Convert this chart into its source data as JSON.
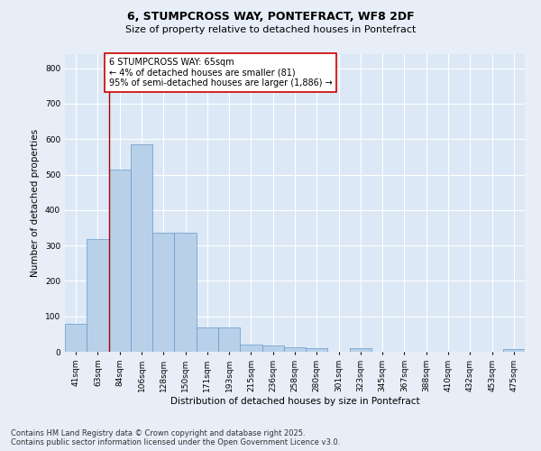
{
  "title_line1": "6, STUMPCROSS WAY, PONTEFRACT, WF8 2DF",
  "title_line2": "Size of property relative to detached houses in Pontefract",
  "xlabel": "Distribution of detached houses by size in Pontefract",
  "ylabel": "Number of detached properties",
  "categories": [
    "41sqm",
    "63sqm",
    "84sqm",
    "106sqm",
    "128sqm",
    "150sqm",
    "171sqm",
    "193sqm",
    "215sqm",
    "236sqm",
    "258sqm",
    "280sqm",
    "301sqm",
    "323sqm",
    "345sqm",
    "367sqm",
    "388sqm",
    "410sqm",
    "432sqm",
    "453sqm",
    "475sqm"
  ],
  "values": [
    80,
    318,
    515,
    585,
    335,
    335,
    68,
    68,
    20,
    18,
    14,
    10,
    0,
    10,
    0,
    0,
    0,
    0,
    0,
    0,
    8
  ],
  "bar_color": "#b8d0e8",
  "bar_edge_color": "#6699cc",
  "vline_color": "#aa0000",
  "annotation_text": "6 STUMPCROSS WAY: 65sqm\n← 4% of detached houses are smaller (81)\n95% of semi-detached houses are larger (1,886) →",
  "annotation_box_color": "#ffffff",
  "annotation_box_edge_color": "#cc0000",
  "ylim": [
    0,
    840
  ],
  "yticks": [
    0,
    100,
    200,
    300,
    400,
    500,
    600,
    700,
    800
  ],
  "background_color": "#e8eef8",
  "plot_background_color": "#dce8f5",
  "grid_color": "#ffffff",
  "footer_line1": "Contains HM Land Registry data © Crown copyright and database right 2025.",
  "footer_line2": "Contains public sector information licensed under the Open Government Licence v3.0.",
  "title_fontsize": 9,
  "subtitle_fontsize": 8,
  "axis_label_fontsize": 7.5,
  "tick_fontsize": 6.5,
  "annotation_fontsize": 7,
  "footer_fontsize": 6
}
